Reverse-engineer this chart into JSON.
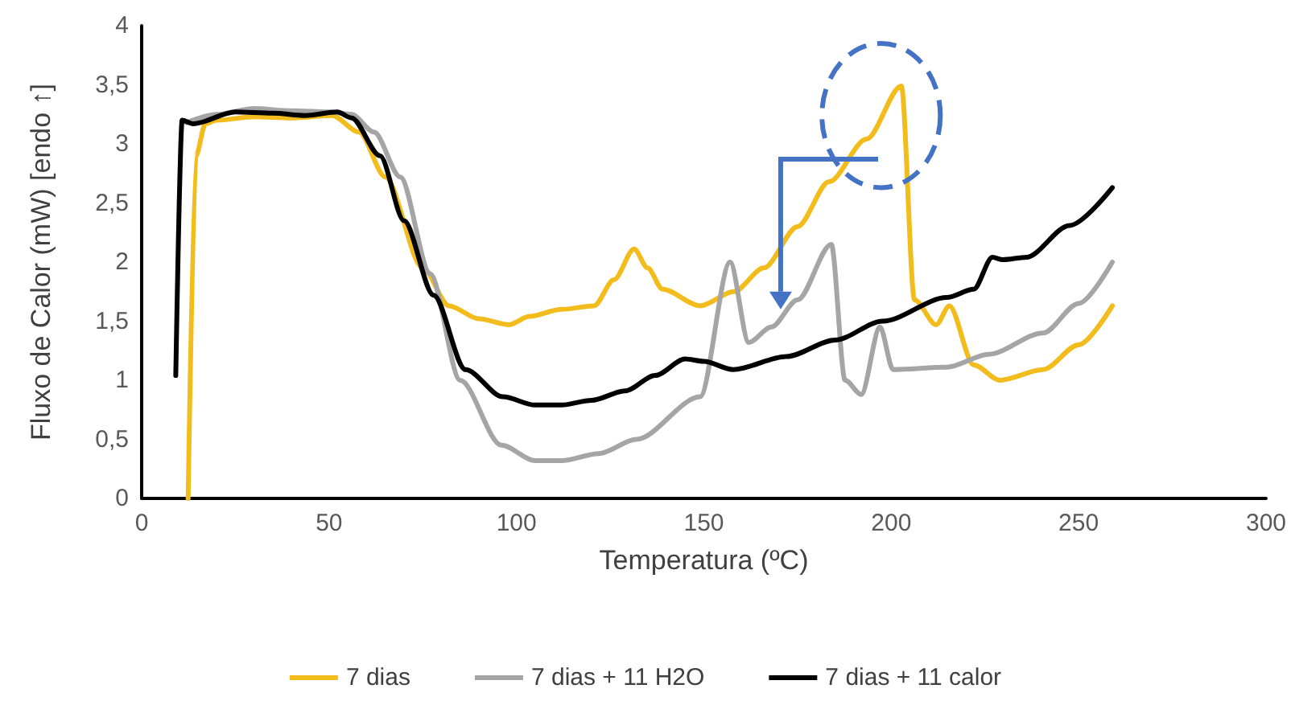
{
  "chart_data": {
    "type": "line",
    "xlabel": "Temperatura (ºC)",
    "ylabel": "Fluxo de Calor (mW) [endo ↑]",
    "xlim": [
      0,
      300
    ],
    "xticks": [
      0,
      50,
      100,
      150,
      200,
      250,
      300
    ],
    "ylim": [
      0,
      4
    ],
    "yticks": [
      0,
      {
        "value": 0.5,
        "label": "0,5"
      },
      1,
      {
        "value": 1.5,
        "label": "1,5"
      },
      2,
      {
        "value": 2.5,
        "label": "2,5"
      },
      3,
      {
        "value": 3.5,
        "label": "3,5"
      },
      4
    ],
    "grid": false,
    "legend": "bottom",
    "marker": "none",
    "line_style": "solid",
    "series": [
      {
        "name": "7 dias",
        "color": "#f2bd1c",
        "x": [
          12.4,
          14.5,
          17,
          20,
          30,
          40,
          50.8,
          58,
          65,
          75,
          82,
          90,
          97.9,
          103.5,
          112,
          120.7,
          126,
          131.4,
          135,
          139,
          149,
          158,
          166,
          175,
          183.4,
          193.4,
          202.7,
          206.2,
          212,
          215.5,
          222,
          229,
          240.5,
          250,
          259
        ],
        "values": [
          0,
          2.9,
          3.17,
          3.2,
          3.23,
          3.22,
          3.24,
          3.1,
          2.72,
          1.95,
          1.63,
          1.52,
          1.47,
          1.54,
          1.6,
          1.63,
          1.85,
          2.11,
          1.95,
          1.77,
          1.63,
          1.75,
          1.95,
          2.3,
          2.68,
          3.04,
          3.49,
          1.68,
          1.47,
          1.63,
          1.13,
          1.0,
          1.09,
          1.3,
          1.63
        ]
      },
      {
        "name": "7 dias + 11 H2O",
        "color": "#a5a5a5",
        "x": [
          12,
          20,
          30,
          40,
          50,
          56,
          62,
          69,
          77,
          85,
          96,
          105,
          112,
          122,
          132,
          149,
          157,
          162,
          168,
          175,
          184,
          187.7,
          192,
          197,
          200.5,
          214.8,
          226,
          240.5,
          250,
          259
        ],
        "values": [
          3.18,
          3.25,
          3.3,
          3.28,
          3.27,
          3.25,
          3.1,
          2.72,
          1.9,
          1.0,
          0.45,
          0.32,
          0.32,
          0.38,
          0.5,
          0.86,
          2.0,
          1.32,
          1.45,
          1.68,
          2.15,
          1.0,
          0.88,
          1.45,
          1.09,
          1.11,
          1.22,
          1.4,
          1.65,
          2.0
        ]
      },
      {
        "name": "7 dias + 11 calor",
        "color": "#000000",
        "x": [
          9.1,
          10.8,
          13.7,
          25,
          35,
          43.6,
          52.2,
          56,
          63.6,
          70,
          77.9,
          86.4,
          96.4,
          105,
          112,
          120,
          129,
          137,
          145,
          150,
          157.8,
          172,
          185,
          197.7,
          214.8,
          222,
          227,
          229.8,
          236,
          247.6,
          259
        ],
        "values": [
          1.04,
          3.2,
          3.17,
          3.27,
          3.26,
          3.24,
          3.27,
          3.22,
          2.9,
          2.35,
          1.72,
          1.09,
          0.86,
          0.79,
          0.79,
          0.83,
          0.91,
          1.04,
          1.18,
          1.16,
          1.09,
          1.2,
          1.34,
          1.5,
          1.7,
          1.77,
          2.04,
          2.02,
          2.04,
          2.31,
          2.63
        ]
      }
    ]
  }
}
